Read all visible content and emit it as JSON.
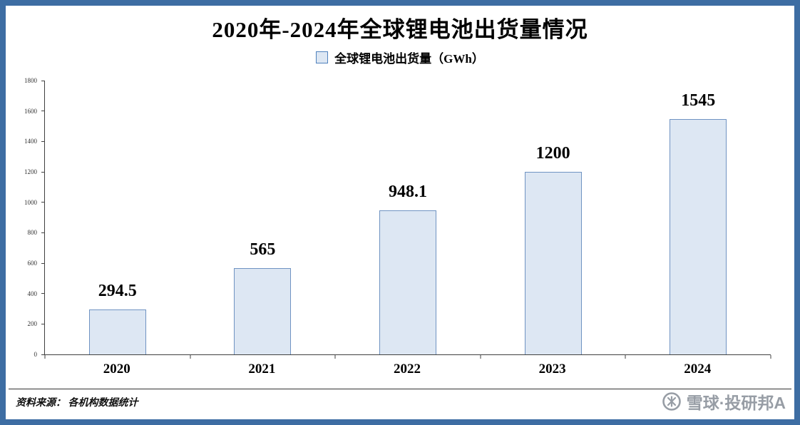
{
  "page": {
    "title": "2020年-2024年全球锂电池出货量情况",
    "legend_label": "全球锂电池出货量（GWh）",
    "source_note": "资料来源： 各机构数据统计",
    "watermark_text": "雪球·投研邦A"
  },
  "colors": {
    "frame": "#3d6da3",
    "bar_fill": "#dde7f3",
    "bar_border": "#6f93c2",
    "legend_swatch_border": "#4f81bd",
    "watermark_gray": "#979da5"
  },
  "chart_data": {
    "type": "bar",
    "title": "2020年-2024年全球锂电池出货量情况",
    "legend": [
      "全球锂电池出货量（GWh）"
    ],
    "legend_position": "top",
    "categories": [
      "2020",
      "2021",
      "2022",
      "2023",
      "2024"
    ],
    "values": [
      294.5,
      565,
      948.1,
      1200,
      1545
    ],
    "value_labels": [
      "294.5",
      "565",
      "948.1",
      "1200",
      "1545"
    ],
    "xlabel": "",
    "ylabel": "",
    "ylim": [
      0,
      1800
    ],
    "ytick_step": 200,
    "grid": false
  }
}
